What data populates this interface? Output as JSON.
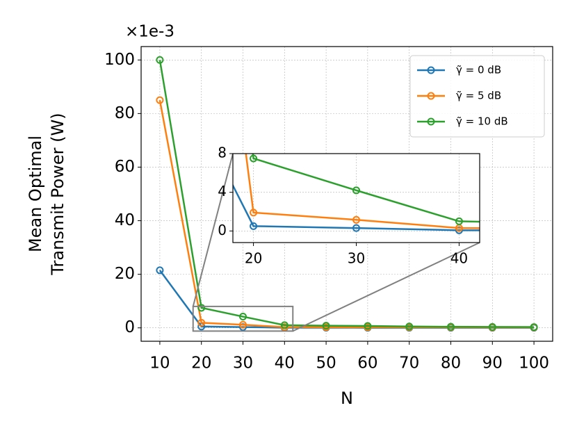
{
  "chart_data": {
    "type": "line",
    "offset_text": "×1e-3",
    "xlabel": "N",
    "ylabel": [
      "Mean Optimal",
      "Transmit Power (W)"
    ],
    "x": [
      10,
      20,
      30,
      40,
      50,
      60,
      70,
      80,
      90,
      100
    ],
    "series": [
      {
        "name": "γ̃ = 0 dB",
        "color": "#1f77b4",
        "values": [
          21.5,
          0.5,
          0.3,
          0.07,
          0.05,
          0.04,
          0.03,
          0.03,
          0.02,
          0.02
        ]
      },
      {
        "name": "γ̃ = 5 dB",
        "color": "#ff7f0e",
        "values": [
          85,
          1.9,
          1.15,
          0.3,
          0.25,
          0.22,
          0.2,
          0.18,
          0.16,
          0.15
        ]
      },
      {
        "name": "γ̃ = 10 dB",
        "color": "#2ca02c",
        "values": [
          100,
          7.5,
          4.2,
          1.0,
          0.8,
          0.7,
          0.5,
          0.4,
          0.35,
          0.3
        ]
      }
    ],
    "xlim": [
      5.5,
      104.5
    ],
    "ylim": [
      -5,
      105
    ],
    "xticks": [
      10,
      20,
      30,
      40,
      50,
      60,
      70,
      80,
      90,
      100
    ],
    "yticks": [
      0,
      20,
      40,
      60,
      80,
      100
    ],
    "grid": true,
    "legend": "upper right",
    "inset": {
      "xlim": [
        18,
        42
      ],
      "ylim": [
        -1.2,
        8
      ],
      "xticks": [
        20,
        30,
        40
      ],
      "yticks": [
        0,
        4,
        8
      ]
    }
  }
}
